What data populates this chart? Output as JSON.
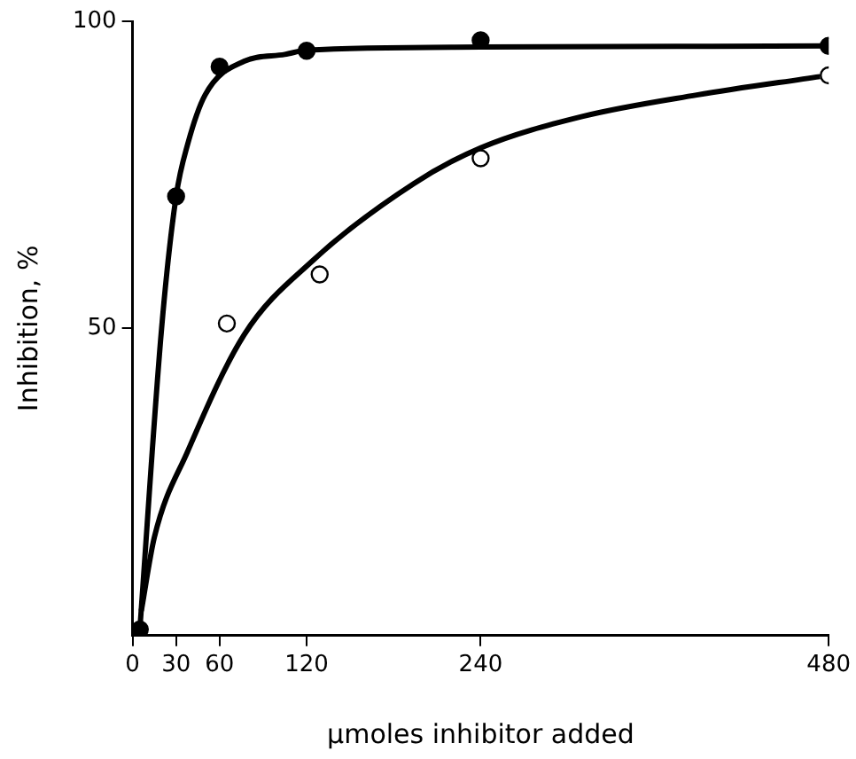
{
  "chart_data": {
    "type": "scatter",
    "xlabel": "μmoles inhibitor added",
    "ylabel": "Inhibition, %",
    "xlim": [
      0,
      480
    ],
    "ylim": [
      0,
      100
    ],
    "xticks": [
      0,
      30,
      60,
      120,
      240,
      480
    ],
    "yticks": [
      50,
      100
    ],
    "grid": false,
    "legend": false,
    "series": [
      {
        "type": "line",
        "color": "#000000",
        "marker": "none",
        "line_style": "solid",
        "x": [
          5,
          20,
          30,
          38,
          50,
          77,
          105,
          120,
          240,
          480
        ],
        "values": [
          1,
          50,
          71.5,
          80,
          88,
          93.5,
          94.6,
          95.3,
          95.8,
          96
        ]
      },
      {
        "type": "line",
        "color": "#000000",
        "marker": "none",
        "line_style": "solid",
        "x": [
          6,
          15,
          38,
          77,
          124,
          194,
          240,
          310,
          389,
          474
        ],
        "values": [
          4,
          16,
          30,
          49,
          61,
          73.6,
          79.4,
          84.5,
          88,
          91
        ]
      },
      {
        "type": "scatter",
        "color": "#000000",
        "marker": "circle",
        "x": [
          5,
          30,
          60,
          120,
          240,
          480
        ],
        "values": [
          1,
          71.5,
          92.6,
          95.2,
          96.9,
          96
        ]
      },
      {
        "type": "scatter",
        "color": "#ffffff",
        "marker": "circle",
        "x": [
          65,
          129,
          240,
          480
        ],
        "values": [
          50.8,
          58.8,
          77.7,
          91.2
        ]
      }
    ]
  }
}
